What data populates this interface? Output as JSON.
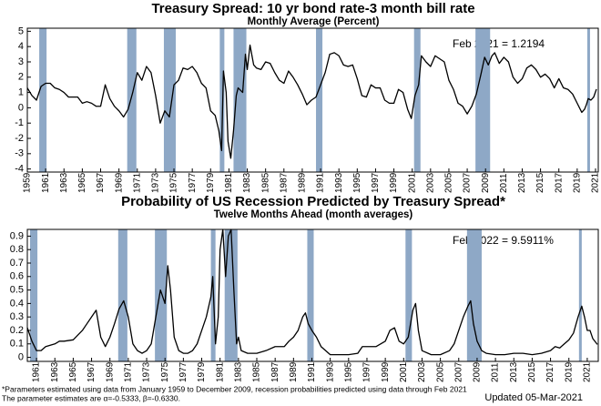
{
  "chart_data": [
    {
      "type": "line",
      "title": "Treasury Spread: 10 yr bond rate-3 month bill rate",
      "subtitle": "Monthly Average (Percent)",
      "annotation": "Feb 2021 = 1.2194",
      "xlim": [
        1959,
        2021.3
      ],
      "ylim": [
        -4.2,
        5.2
      ],
      "yticks": [
        -4,
        -3,
        -2,
        -1,
        0,
        1,
        2,
        3,
        4,
        5
      ],
      "xticks": [
        1959,
        1961,
        1963,
        1965,
        1967,
        1969,
        1971,
        1973,
        1975,
        1977,
        1979,
        1981,
        1983,
        1985,
        1987,
        1989,
        1991,
        1993,
        1995,
        1997,
        1999,
        2001,
        2003,
        2005,
        2007,
        2009,
        2011,
        2013,
        2015,
        2017,
        2019,
        2021
      ],
      "recession_color": "#8ea8c6",
      "recessions": [
        [
          1960.3,
          1961.1
        ],
        [
          1969.9,
          1970.9
        ],
        [
          1973.9,
          1975.2
        ],
        [
          1980.0,
          1980.5
        ],
        [
          1981.5,
          1982.9
        ],
        [
          1990.5,
          1991.2
        ],
        [
          2001.2,
          2001.9
        ],
        [
          2007.9,
          2009.5
        ],
        [
          2020.1,
          2020.4
        ]
      ],
      "series": [
        {
          "color": "#000000",
          "x": [
            1959.0,
            1959.5,
            1960.0,
            1960.5,
            1961.0,
            1961.5,
            1962.0,
            1962.5,
            1963.0,
            1963.5,
            1964.0,
            1964.5,
            1965.0,
            1965.5,
            1966.0,
            1966.5,
            1967.0,
            1967.5,
            1968.0,
            1968.5,
            1969.0,
            1969.5,
            1970.0,
            1970.5,
            1971.0,
            1971.5,
            1972.0,
            1972.5,
            1973.0,
            1973.5,
            1974.0,
            1974.5,
            1975.0,
            1975.5,
            1976.0,
            1976.5,
            1977.0,
            1977.5,
            1978.0,
            1978.5,
            1979.0,
            1979.5,
            1979.9,
            1980.2,
            1980.4,
            1980.7,
            1980.9,
            1981.2,
            1981.5,
            1981.8,
            1982.0,
            1982.5,
            1982.8,
            1983.0,
            1983.3,
            1983.7,
            1984.0,
            1984.5,
            1985.0,
            1985.5,
            1986.0,
            1986.5,
            1987.0,
            1987.5,
            1988.0,
            1988.5,
            1989.0,
            1989.5,
            1990.0,
            1990.5,
            1991.0,
            1991.5,
            1992.0,
            1992.5,
            1993.0,
            1993.5,
            1994.0,
            1994.5,
            1995.0,
            1995.5,
            1996.0,
            1996.5,
            1997.0,
            1997.5,
            1998.0,
            1998.5,
            1999.0,
            1999.5,
            2000.0,
            2000.5,
            2000.9,
            2001.3,
            2001.7,
            2002.0,
            2002.5,
            2003.0,
            2003.5,
            2004.0,
            2004.5,
            2005.0,
            2005.5,
            2006.0,
            2006.5,
            2007.0,
            2007.5,
            2008.0,
            2008.5,
            2008.9,
            2009.3,
            2009.7,
            2010.0,
            2010.5,
            2011.0,
            2011.5,
            2012.0,
            2012.5,
            2013.0,
            2013.5,
            2014.0,
            2014.5,
            2015.0,
            2015.5,
            2016.0,
            2016.5,
            2017.0,
            2017.5,
            2018.0,
            2018.5,
            2019.0,
            2019.5,
            2019.8,
            2020.0,
            2020.2,
            2020.5,
            2020.8,
            2021.1
          ],
          "values": [
            1.3,
            0.8,
            0.5,
            1.4,
            1.6,
            1.6,
            1.3,
            1.2,
            1.0,
            0.7,
            0.7,
            0.7,
            0.3,
            0.4,
            0.3,
            0.1,
            0.1,
            1.5,
            0.6,
            0.1,
            -0.2,
            -0.6,
            -0.1,
            1.0,
            2.3,
            1.8,
            2.7,
            2.3,
            0.8,
            -1.0,
            -0.2,
            -0.6,
            1.5,
            1.8,
            2.6,
            2.5,
            2.7,
            2.3,
            1.6,
            1.3,
            -0.2,
            -0.5,
            -1.5,
            -2.8,
            2.4,
            1.0,
            -2.2,
            -3.3,
            -1.5,
            0.8,
            1.3,
            1.0,
            3.5,
            2.5,
            4.1,
            2.8,
            2.6,
            2.5,
            3.0,
            2.9,
            2.3,
            1.8,
            1.6,
            2.4,
            2.0,
            1.5,
            0.9,
            0.2,
            0.5,
            0.7,
            1.5,
            2.3,
            3.5,
            3.6,
            3.4,
            2.8,
            2.7,
            2.8,
            1.9,
            0.8,
            0.7,
            1.5,
            1.3,
            1.3,
            0.5,
            0.3,
            0.3,
            1.2,
            1.0,
            -0.1,
            -0.7,
            0.8,
            1.5,
            3.4,
            3.0,
            2.7,
            3.4,
            3.2,
            3.0,
            1.8,
            1.2,
            0.3,
            0.1,
            -0.4,
            0.1,
            0.9,
            2.2,
            3.3,
            2.8,
            3.4,
            3.6,
            2.9,
            3.3,
            3.0,
            2.0,
            1.6,
            1.9,
            2.6,
            2.8,
            2.5,
            2.0,
            2.2,
            1.9,
            1.3,
            1.9,
            1.3,
            1.2,
            0.9,
            0.3,
            -0.3,
            -0.1,
            0.2,
            0.6,
            0.5,
            0.7,
            1.2194
          ]
        }
      ]
    },
    {
      "type": "line",
      "title": "Probability of US Recession Predicted by Treasury Spread*",
      "subtitle": "Twelve Months Ahead (month averages)",
      "annotation": "Feb 2022 = 9.5911%",
      "xlim": [
        1960,
        2022.2
      ],
      "ylim": [
        -0.03,
        0.95
      ],
      "yticks": [
        0,
        0.1,
        0.2,
        0.3,
        0.4,
        0.5,
        0.6,
        0.7,
        0.8,
        0.9
      ],
      "xticks": [
        1961,
        1963,
        1965,
        1967,
        1969,
        1971,
        1973,
        1975,
        1977,
        1979,
        1981,
        1983,
        1985,
        1987,
        1989,
        1991,
        1993,
        1995,
        1997,
        1999,
        2001,
        2003,
        2005,
        2007,
        2009,
        2011,
        2013,
        2015,
        2017,
        2019,
        2021
      ],
      "recession_color": "#8ea8c6",
      "recessions": [
        [
          1960.3,
          1961.1
        ],
        [
          1969.9,
          1970.9
        ],
        [
          1973.9,
          1975.2
        ],
        [
          1980.0,
          1980.5
        ],
        [
          1981.5,
          1982.9
        ],
        [
          1990.5,
          1991.2
        ],
        [
          2001.2,
          2001.9
        ],
        [
          2007.9,
          2009.5
        ],
        [
          2020.1,
          2020.4
        ]
      ],
      "series": [
        {
          "color": "#000000",
          "x": [
            1960.0,
            1960.5,
            1961.0,
            1961.5,
            1962.0,
            1962.5,
            1963.0,
            1963.5,
            1964.0,
            1965.0,
            1966.0,
            1966.5,
            1967.0,
            1967.5,
            1968.0,
            1968.5,
            1969.0,
            1969.5,
            1970.0,
            1970.5,
            1971.0,
            1971.5,
            1972.0,
            1972.5,
            1973.0,
            1973.5,
            1974.0,
            1974.5,
            1975.0,
            1975.3,
            1975.6,
            1976.0,
            1976.5,
            1977.0,
            1977.5,
            1978.0,
            1978.5,
            1979.0,
            1979.5,
            1980.0,
            1980.2,
            1980.5,
            1980.8,
            1981.0,
            1981.3,
            1981.6,
            1981.9,
            1982.2,
            1982.5,
            1982.8,
            1983.0,
            1983.3,
            1984.0,
            1985.0,
            1986.0,
            1987.0,
            1988.0,
            1988.5,
            1989.0,
            1989.5,
            1990.0,
            1990.3,
            1990.6,
            1991.0,
            1991.5,
            1992.0,
            1993.0,
            1994.0,
            1995.0,
            1996.0,
            1996.5,
            1997.0,
            1998.0,
            1999.0,
            1999.5,
            2000.0,
            2000.5,
            2001.0,
            2001.5,
            2002.0,
            2002.3,
            2002.6,
            2003.0,
            2004.0,
            2005.0,
            2006.0,
            2006.5,
            2007.0,
            2007.5,
            2008.0,
            2008.3,
            2008.6,
            2009.0,
            2009.5,
            2010.0,
            2011.0,
            2012.0,
            2013.0,
            2014.0,
            2015.0,
            2016.0,
            2017.0,
            2017.5,
            2018.0,
            2018.5,
            2019.0,
            2019.5,
            2020.0,
            2020.4,
            2020.7,
            2021.0,
            2021.3,
            2021.6,
            2022.1
          ],
          "values": [
            0.22,
            0.12,
            0.05,
            0.05,
            0.08,
            0.09,
            0.1,
            0.12,
            0.12,
            0.13,
            0.2,
            0.25,
            0.3,
            0.35,
            0.15,
            0.08,
            0.15,
            0.25,
            0.36,
            0.42,
            0.3,
            0.1,
            0.05,
            0.03,
            0.05,
            0.1,
            0.3,
            0.5,
            0.4,
            0.68,
            0.5,
            0.15,
            0.05,
            0.03,
            0.03,
            0.05,
            0.1,
            0.2,
            0.3,
            0.45,
            0.6,
            0.1,
            0.3,
            0.8,
            0.95,
            0.6,
            0.9,
            0.95,
            0.5,
            0.1,
            0.15,
            0.05,
            0.03,
            0.03,
            0.05,
            0.08,
            0.08,
            0.12,
            0.15,
            0.2,
            0.3,
            0.33,
            0.25,
            0.2,
            0.15,
            0.08,
            0.02,
            0.02,
            0.02,
            0.03,
            0.08,
            0.08,
            0.08,
            0.12,
            0.2,
            0.22,
            0.12,
            0.1,
            0.15,
            0.35,
            0.4,
            0.2,
            0.05,
            0.02,
            0.02,
            0.05,
            0.1,
            0.2,
            0.3,
            0.38,
            0.42,
            0.25,
            0.12,
            0.05,
            0.03,
            0.02,
            0.02,
            0.03,
            0.03,
            0.02,
            0.03,
            0.05,
            0.08,
            0.07,
            0.1,
            0.13,
            0.18,
            0.3,
            0.38,
            0.3,
            0.2,
            0.2,
            0.14,
            0.0959
          ]
        }
      ]
    }
  ],
  "footnotes": [
    "*Parameters estimated using data from January 1959 to December 2009, recession probabilities predicted using data through Feb 2021",
    "The parameter estimates are α=-0.5333, β=-0.6330.",
    "Updated 05-Mar-2021"
  ]
}
